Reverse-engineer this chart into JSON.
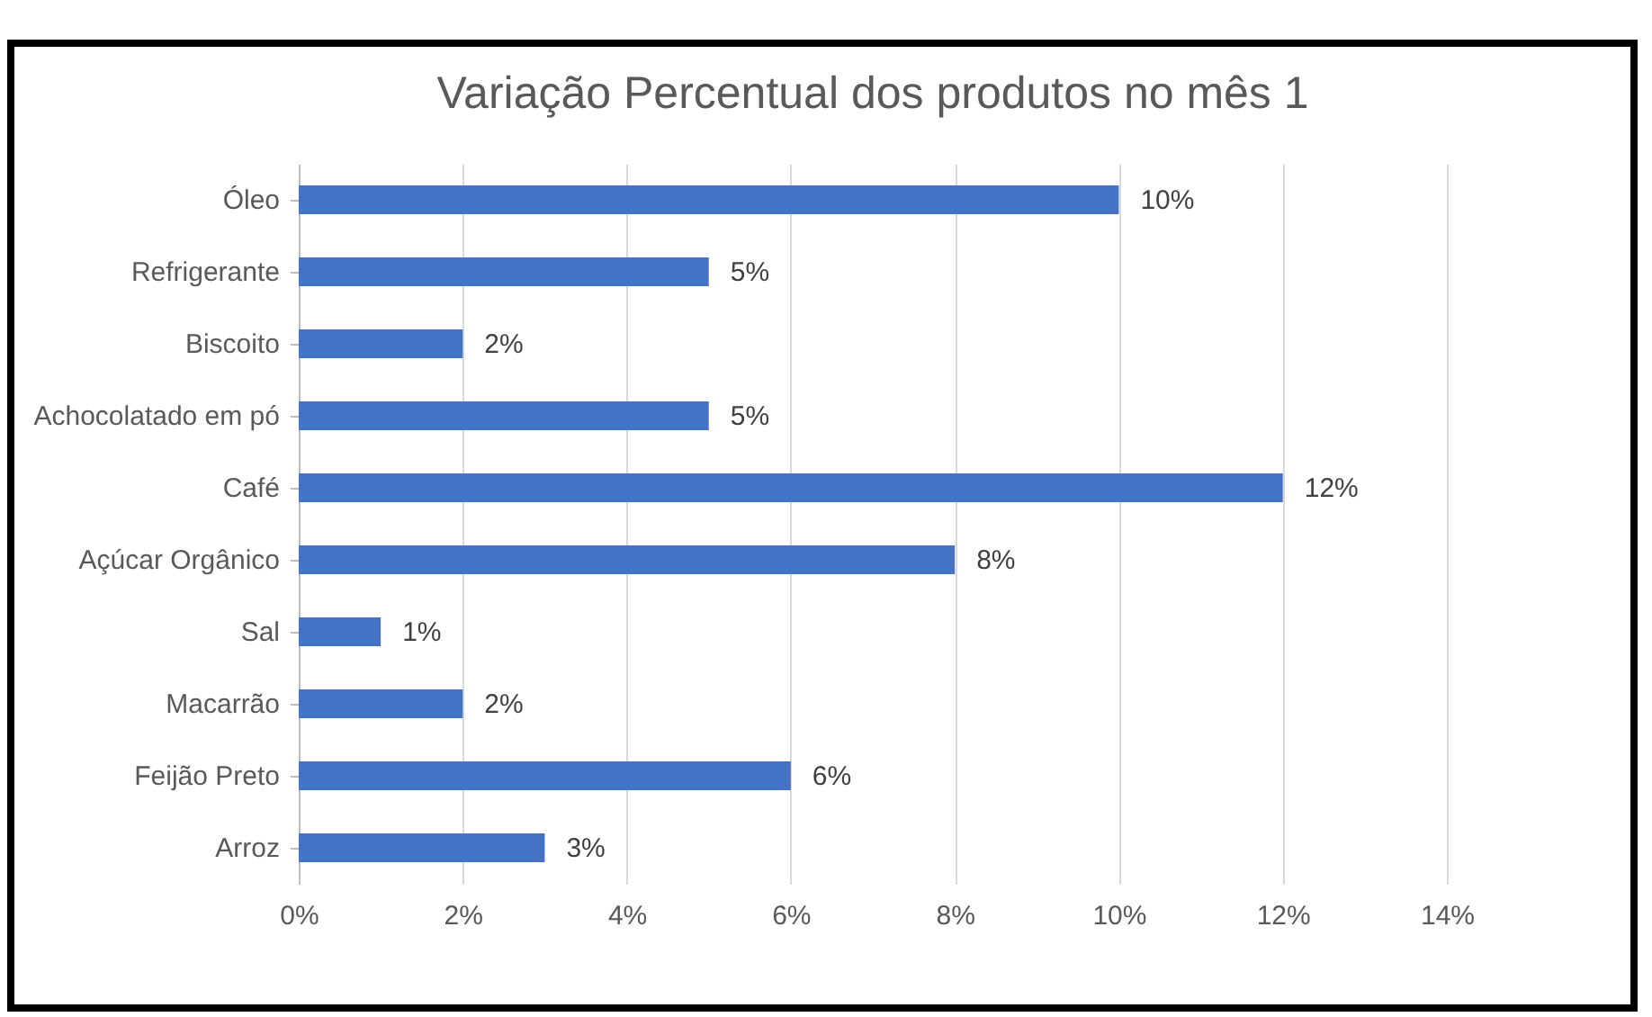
{
  "chart_data": {
    "type": "bar",
    "orientation": "horizontal",
    "title": "Variação Percentual dos produtos no mês 1",
    "categories": [
      "Óleo",
      "Refrigerante",
      "Biscoito",
      "Achocolatado em pó",
      "Café",
      "Açúcar Orgânico",
      "Sal",
      "Macarrão",
      "Feijão Preto",
      "Arroz"
    ],
    "values": [
      10,
      5,
      2,
      5,
      12,
      8,
      1,
      2,
      6,
      3
    ],
    "value_labels": [
      "10%",
      "5%",
      "2%",
      "5%",
      "12%",
      "8%",
      "1%",
      "2%",
      "6%",
      "3%"
    ],
    "color": "#4472c4",
    "xlim": [
      0,
      14
    ],
    "xticks": [
      {
        "value": 0,
        "label": "0%"
      },
      {
        "value": 2,
        "label": "2%"
      },
      {
        "value": 4,
        "label": "4%"
      },
      {
        "value": 6,
        "label": "6%"
      },
      {
        "value": 8,
        "label": "8%"
      },
      {
        "value": 10,
        "label": "10%"
      },
      {
        "value": 12,
        "label": "12%"
      },
      {
        "value": 14,
        "label": "14%"
      }
    ],
    "grid": "x"
  }
}
